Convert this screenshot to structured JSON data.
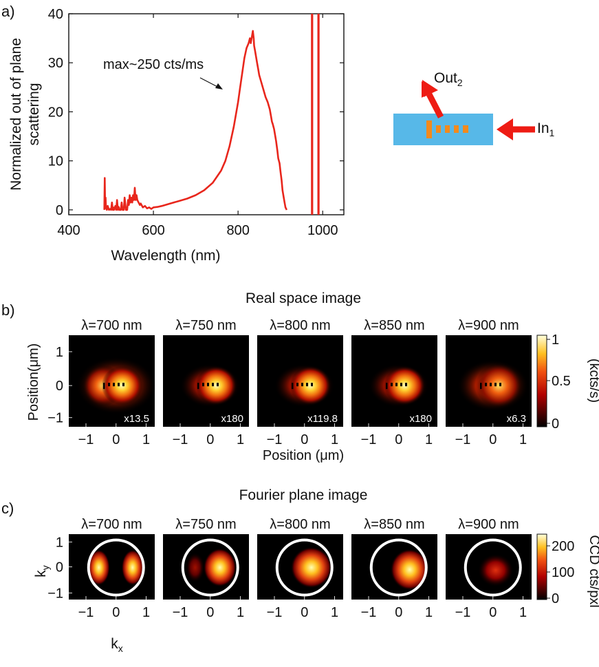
{
  "panels": {
    "a_label": "a)",
    "b_label": "b)",
    "c_label": "c)"
  },
  "colors": {
    "spectrum": "#e8261c",
    "waveguide": "#57b8e8",
    "grating": "#f28a1d",
    "arrow": "#ee1c14",
    "circle": "#ffffff",
    "ticks": "#111111"
  },
  "inset": {
    "out_label": "Out",
    "out_sub": "2",
    "in_label": "In",
    "in_sub": "1"
  },
  "shared": {
    "colorbar_ticks_b": [
      "1",
      "0.5",
      "0"
    ],
    "colorbar_label_b": "(kcts/s)",
    "colorbar_ticks_c": [
      "200",
      "100",
      "0"
    ],
    "colorbar_label_c": "CCD cts/pxl"
  },
  "chart_data": [
    {
      "type": "line",
      "id": "a",
      "title": "",
      "xlabel": "Wavelength (nm)",
      "ylabel": "Normalized out of plane scattering",
      "ylabel_lines": [
        "Normalized out of plane",
        "scattering"
      ],
      "xlim": [
        400,
        1050
      ],
      "ylim": [
        -1,
        40
      ],
      "xticks": [
        400,
        600,
        800,
        1000
      ],
      "yticks": [
        0,
        10,
        20,
        30,
        40
      ],
      "annotation": "max~250 cts/ms",
      "series": [
        {
          "name": "out of plane scattering",
          "x": [
            484,
            485,
            486,
            487,
            488,
            490,
            492,
            495,
            498,
            500,
            502,
            504,
            505,
            507,
            510,
            512,
            514,
            516,
            518,
            520,
            523,
            525,
            527,
            530,
            532,
            535,
            538,
            540,
            542,
            544,
            546,
            548,
            550,
            552,
            554,
            556,
            558,
            560,
            562,
            565,
            568,
            570,
            575,
            580,
            585,
            590,
            595,
            600,
            610,
            620,
            640,
            660,
            680,
            700,
            720,
            740,
            760,
            770,
            780,
            790,
            800,
            805,
            810,
            815,
            820,
            825,
            828,
            830,
            833,
            835,
            837,
            838,
            840,
            842,
            845,
            848,
            850,
            855,
            860,
            865,
            870,
            875,
            878,
            880,
            882,
            885,
            888,
            890,
            893,
            895,
            898,
            900,
            903,
            905,
            908,
            910,
            912,
            915
          ],
          "y": [
            0,
            6.5,
            0.5,
            2.5,
            0.3,
            0,
            0.8,
            0,
            0.2,
            0,
            1.5,
            0,
            0.5,
            0,
            0.8,
            0,
            2,
            0,
            0.6,
            0,
            0,
            1.5,
            0,
            0,
            2.5,
            0,
            0,
            2,
            1,
            3,
            1.5,
            2.5,
            1.5,
            3,
            2,
            4.5,
            2,
            3,
            2,
            1.5,
            1,
            1.3,
            0.5,
            0.8,
            0.3,
            0.5,
            0.2,
            0.5,
            0.6,
            0.8,
            1.3,
            1.8,
            2.3,
            3,
            4,
            5.5,
            8,
            10,
            13,
            17,
            22,
            25,
            28,
            31,
            33,
            34,
            35,
            34,
            35.5,
            36.5,
            35,
            33.5,
            32.5,
            31.5,
            30,
            28.5,
            27.5,
            26,
            24.5,
            23,
            22,
            20.5,
            19,
            18,
            17.5,
            16.5,
            15,
            14,
            12,
            10.5,
            9.5,
            8,
            6,
            4,
            2.5,
            1.5,
            0.5,
            0
          ]
        },
        {
          "name": "excitation line 1",
          "x": [
            975,
            975
          ],
          "y": [
            -1,
            40
          ]
        },
        {
          "name": "excitation line 2",
          "x": [
            990,
            990
          ],
          "y": [
            -1,
            40
          ]
        }
      ]
    },
    {
      "type": "heatmap",
      "id": "b",
      "title": "Real space image",
      "xlabel": "Position (μm)",
      "ylabel": "Position(μm)",
      "xticks": [
        "−1",
        "0",
        "1"
      ],
      "yticks": [
        "1",
        "0",
        "−1"
      ],
      "colorbar": {
        "min": 0,
        "max": 1,
        "ticks": [
          "1",
          "0.5",
          "0"
        ],
        "label": "(kcts/s)"
      },
      "tiles": [
        {
          "wavelength": "λ=700 nm",
          "scale": "x13.5"
        },
        {
          "wavelength": "λ=750 nm",
          "scale": "x180"
        },
        {
          "wavelength": "λ=800 nm",
          "scale": "x119.8"
        },
        {
          "wavelength": "λ=850 nm",
          "scale": "x180"
        },
        {
          "wavelength": "λ=900 nm",
          "scale": "x6.3"
        }
      ]
    },
    {
      "type": "heatmap",
      "id": "c",
      "title": "Fourier plane image",
      "xlabel": "kₓ",
      "ylabel": "kᵧ",
      "xlabel_base": "k",
      "xlabel_sub": "x",
      "ylabel_base": "k",
      "ylabel_sub": "y",
      "xticks": [
        "−1",
        "0",
        "1"
      ],
      "yticks": [
        "1",
        "0",
        "−1"
      ],
      "colorbar": {
        "min": 0,
        "max": 240,
        "ticks": [
          "200",
          "100",
          "0"
        ],
        "label": "CCD cts/pxl"
      },
      "tiles": [
        {
          "wavelength": "λ=700 nm"
        },
        {
          "wavelength": "λ=750 nm"
        },
        {
          "wavelength": "λ=800 nm"
        },
        {
          "wavelength": "λ=850 nm"
        },
        {
          "wavelength": "λ=900 nm"
        }
      ]
    }
  ]
}
